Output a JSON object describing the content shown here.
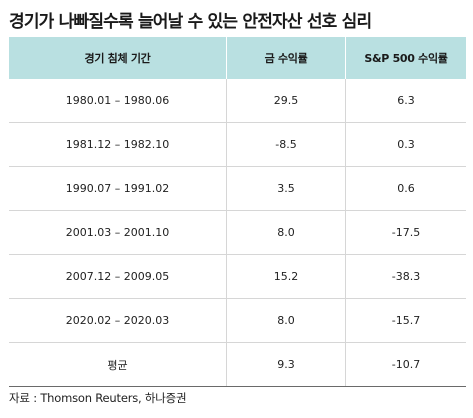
{
  "title": "경기가 나빠질수록 늘어날 수 있는 안전자산 선호 심리",
  "table": {
    "headers": [
      "경기 침체 기간",
      "금 수익률",
      "S&P 500 수익률"
    ],
    "rows": [
      {
        "period": "1980.01 – 1980.06",
        "gold": "29.5",
        "sp500": "6.3"
      },
      {
        "period": "1981.12 – 1982.10",
        "gold": "-8.5",
        "sp500": "0.3"
      },
      {
        "period": "1990.07 – 1991.02",
        "gold": "3.5",
        "sp500": "0.6"
      },
      {
        "period": "2001.03 – 2001.10",
        "gold": "8.0",
        "sp500": "-17.5"
      },
      {
        "period": "2007.12 – 2009.05",
        "gold": "15.2",
        "sp500": "-38.3"
      },
      {
        "period": "2020.02 – 2020.03",
        "gold": "8.0",
        "sp500": "-15.7"
      },
      {
        "period": "평균",
        "gold": "9.3",
        "sp500": "-10.7"
      }
    ]
  },
  "source": "자료 : Thomson Reuters, 하나증권",
  "colors": {
    "header_bg": "#b9e0e1",
    "grid": "#d6d6d6",
    "bottom_rule": "#6a6a6a"
  }
}
